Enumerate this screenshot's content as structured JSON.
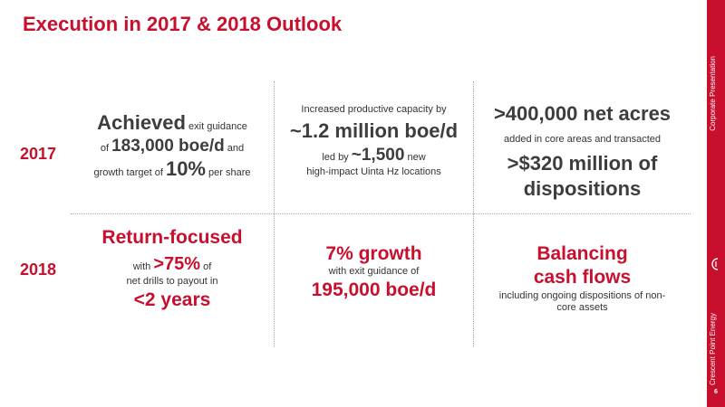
{
  "title": "Execution in 2017 & 2018 Outlook",
  "sidebar": {
    "top_label": "Corporate Presentation",
    "bottom_label": "Crescent Point Energy",
    "page_number": "6",
    "logo_icon": "crescent-point-logo-icon"
  },
  "colors": {
    "accent": "#c8102e",
    "text": "#333333",
    "divider": "#aaaaaa"
  },
  "years": {
    "y2017": "2017",
    "y2018": "2018"
  },
  "row2017": {
    "c1": {
      "l1_big": "Achieved",
      "l1_small": " exit guidance",
      "l2_pre": "of ",
      "l2_big": "183,000 boe/d",
      "l2_post": " and",
      "l3_pre": "growth target of ",
      "l3_big": "10%",
      "l3_post": " per share"
    },
    "c2": {
      "l1": "Increased productive capacity by",
      "l2": "~1.2 million boe/d",
      "l3_pre": "led by ",
      "l3_big": "~1,500",
      "l3_post": " new",
      "l4": "high-impact Uinta Hz locations"
    },
    "c3": {
      "l1": ">400,000 net acres",
      "l2": "added  in core areas and transacted",
      "l3": ">$320 million of",
      "l4": "dispositions"
    }
  },
  "row2018": {
    "c1": {
      "l1": "Return-focused",
      "l2_pre": "with ",
      "l2_big": ">75%",
      "l2_post": " of",
      "l3": "net drills to payout in",
      "l4": "<2 years"
    },
    "c2": {
      "l1": "7% growth",
      "l2": "with exit guidance of",
      "l3": "195,000 boe/d"
    },
    "c3": {
      "l1": "Balancing",
      "l2": "cash flows",
      "l3": "including ongoing dispositions of non-",
      "l4": "core assets"
    }
  }
}
